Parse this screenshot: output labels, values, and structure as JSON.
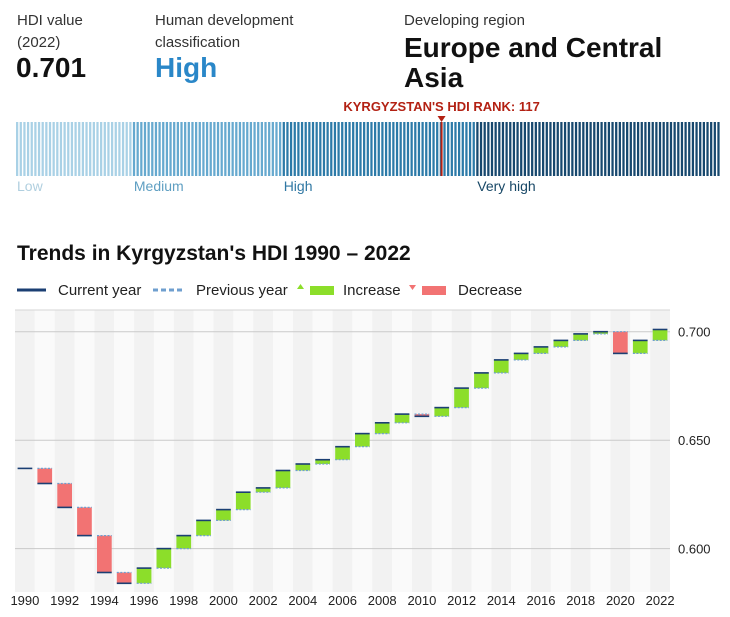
{
  "header": {
    "hdi_label": "HDI value",
    "hdi_year": "(2022)",
    "hdi_value": "0.701",
    "classification_label_1": "Human development",
    "classification_label_2": "classification",
    "classification_value": "High",
    "region_label": "Developing region",
    "region_value": "Europe and Central Asia"
  },
  "rank": {
    "text": "KYRGYZSTAN'S HDI RANK: 117",
    "rank": 117,
    "total": 193,
    "categories": [
      {
        "label": "Low",
        "count": 32,
        "color": "#a9d1e6",
        "label_color": "#b0cfdf"
      },
      {
        "label": "Medium",
        "count": 41,
        "color": "#66a9cf",
        "label_color": "#5f9fc2"
      },
      {
        "label": "High",
        "count": 53,
        "color": "#2c7aa8",
        "label_color": "#2f77a3"
      },
      {
        "label": "Very high",
        "count": 67,
        "color": "#17486e",
        "label_color": "#174766"
      }
    ],
    "marker_color": "#b32113"
  },
  "chart_data": {
    "type": "waterfall",
    "title": "Trends in Kyrgyzstan's HDI 1990 – 2022",
    "legend": {
      "current": "Current year",
      "previous": "Previous year",
      "increase": "Increase",
      "decrease": "Decrease"
    },
    "colors": {
      "increase": "#8cde2a",
      "decrease": "#f27373",
      "current": "#1b3f73",
      "previous": "#6f9fcf"
    },
    "years": [
      1990,
      1991,
      1992,
      1993,
      1994,
      1995,
      1996,
      1997,
      1998,
      1999,
      2000,
      2001,
      2002,
      2003,
      2004,
      2005,
      2006,
      2007,
      2008,
      2009,
      2010,
      2011,
      2012,
      2013,
      2014,
      2015,
      2016,
      2017,
      2018,
      2019,
      2020,
      2021,
      2022
    ],
    "values": [
      0.637,
      0.63,
      0.619,
      0.606,
      0.589,
      0.584,
      0.591,
      0.6,
      0.606,
      0.613,
      0.618,
      0.626,
      0.628,
      0.636,
      0.639,
      0.641,
      0.647,
      0.653,
      0.658,
      0.662,
      0.661,
      0.665,
      0.674,
      0.681,
      0.687,
      0.69,
      0.693,
      0.696,
      0.699,
      0.7,
      0.69,
      0.696,
      0.701
    ],
    "x_tick_labels": [
      "1990",
      "1992",
      "1994",
      "1996",
      "1998",
      "2000",
      "2002",
      "2004",
      "2006",
      "2008",
      "2010",
      "2012",
      "2014",
      "2016",
      "2018",
      "2020",
      "2022"
    ],
    "y_ticks": [
      0.6,
      0.65,
      0.7
    ],
    "y_tick_labels": [
      "0.600",
      "0.650",
      "0.700"
    ],
    "ylim": [
      0.58,
      0.71
    ]
  }
}
